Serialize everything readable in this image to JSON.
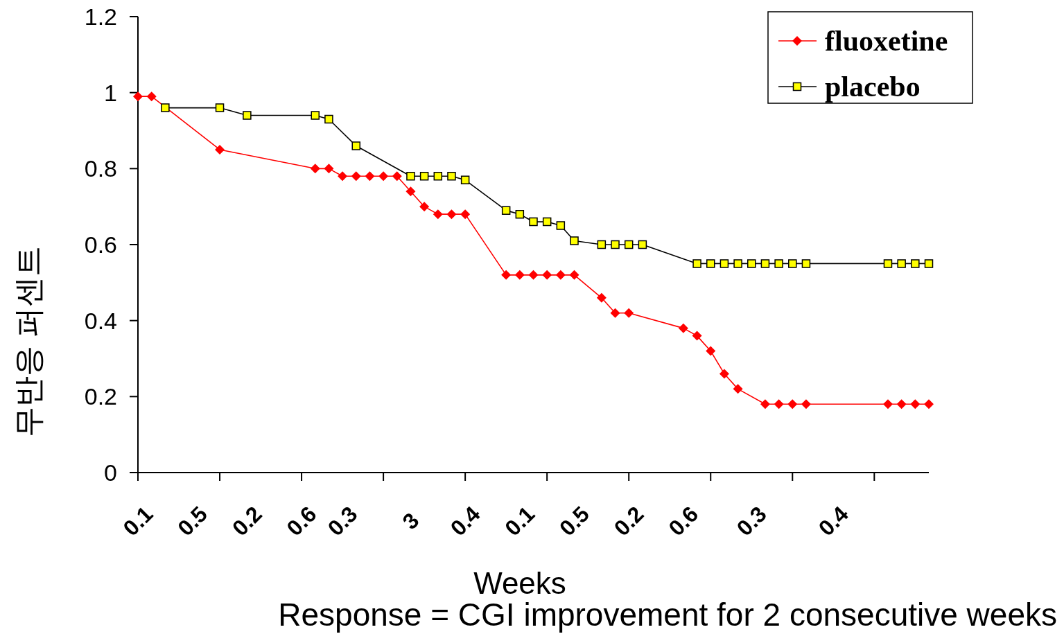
{
  "chart_data": {
    "type": "line",
    "xlabel": "Weeks",
    "ylabel": "무반응 퍼센트",
    "annotations": [
      "Response = CGI improvement for 2 consecutive weeks"
    ],
    "categories": [
      "0.1",
      null,
      null,
      null,
      "0.5",
      null,
      null,
      null,
      "0.2",
      null,
      null,
      null,
      "0.6",
      null,
      null,
      "0.3",
      null,
      null,
      null,
      null,
      "3",
      null,
      null,
      null,
      "0.4",
      null,
      null,
      null,
      "0.1",
      null,
      null,
      null,
      "0.5",
      null,
      null,
      null,
      "0.2",
      null,
      null,
      null,
      "0.6",
      null,
      null,
      null,
      null,
      "0.3",
      null,
      null,
      null,
      null,
      null,
      "0.4",
      null,
      null,
      null,
      null,
      null,
      null,
      null
    ],
    "series": [
      {
        "name": "fluoxetine",
        "color": "#ff0000",
        "marker": "diamond",
        "values": [
          0.99,
          0.99,
          null,
          null,
          null,
          null,
          0.85,
          null,
          null,
          null,
          null,
          null,
          null,
          0.8,
          0.8,
          0.78,
          0.78,
          0.78,
          0.78,
          0.78,
          0.74,
          0.7,
          0.68,
          0.68,
          0.68,
          null,
          null,
          0.52,
          0.52,
          0.52,
          0.52,
          0.52,
          0.52,
          null,
          0.46,
          0.42,
          0.42,
          null,
          null,
          null,
          0.38,
          0.36,
          0.32,
          0.26,
          0.22,
          null,
          0.18,
          0.18,
          0.18,
          0.18,
          null,
          null,
          null,
          null,
          null,
          0.18,
          0.18,
          0.18,
          0.18
        ]
      },
      {
        "name": "placebo",
        "color": "#000000",
        "marker": "square",
        "values": [
          null,
          null,
          0.96,
          null,
          null,
          null,
          0.96,
          null,
          0.94,
          null,
          null,
          null,
          null,
          0.94,
          0.93,
          null,
          0.86,
          null,
          null,
          null,
          0.78,
          0.78,
          0.78,
          0.78,
          0.77,
          null,
          null,
          0.69,
          0.68,
          0.66,
          0.66,
          0.65,
          0.61,
          null,
          0.6,
          0.6,
          0.6,
          0.6,
          null,
          null,
          null,
          0.55,
          0.55,
          0.55,
          0.55,
          0.55,
          0.55,
          0.55,
          0.55,
          0.55,
          null,
          null,
          null,
          null,
          null,
          0.55,
          0.55,
          0.55,
          0.55
        ]
      }
    ],
    "ylim": [
      0,
      1.2
    ],
    "yticks": [
      0,
      0.2,
      0.4,
      0.6,
      0.8,
      1,
      1.2
    ],
    "grid": false,
    "legend": "top right"
  }
}
